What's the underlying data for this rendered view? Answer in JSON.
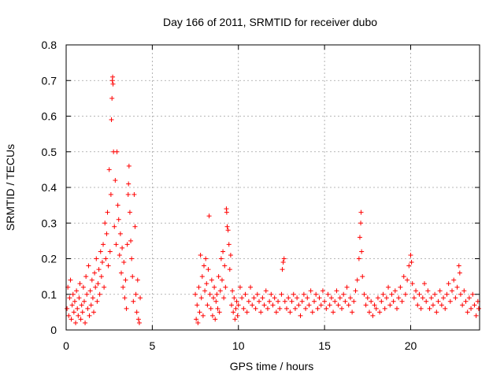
{
  "chart_data": {
    "type": "scatter",
    "title": "Day 166 of 2011, SRMTID for receiver dubo",
    "xlabel": "GPS time / hours",
    "ylabel": "SRMTID / TECUs",
    "xlim": [
      0,
      24
    ],
    "ylim": [
      0,
      0.8
    ],
    "x_ticks": [
      0,
      5,
      10,
      15,
      20
    ],
    "x_tick_labels": [
      "0",
      "5",
      "10",
      "15",
      "20"
    ],
    "y_ticks": [
      0,
      0.1,
      0.2,
      0.3,
      0.4,
      0.5,
      0.6,
      0.7,
      0.8
    ],
    "y_tick_labels": [
      "0",
      "0.1",
      "0.2",
      "0.3",
      "0.4",
      "0.5",
      "0.6",
      "0.7",
      "0.8"
    ],
    "grid": true,
    "marker": "+",
    "color": "#ff0000",
    "legend": "none",
    "series": [
      {
        "name": "SRMTID",
        "points": [
          [
            0.05,
            0.06
          ],
          [
            0.1,
            0.12
          ],
          [
            0.15,
            0.04
          ],
          [
            0.2,
            0.09
          ],
          [
            0.25,
            0.14
          ],
          [
            0.3,
            0.03
          ],
          [
            0.35,
            0.07
          ],
          [
            0.4,
            0.1
          ],
          [
            0.45,
            0.05
          ],
          [
            0.5,
            0.08
          ],
          [
            0.55,
            0.02
          ],
          [
            0.6,
            0.11
          ],
          [
            0.65,
            0.06
          ],
          [
            0.7,
            0.04
          ],
          [
            0.75,
            0.09
          ],
          [
            0.8,
            0.13
          ],
          [
            0.85,
            0.03
          ],
          [
            0.9,
            0.07
          ],
          [
            0.95,
            0.05
          ],
          [
            1.0,
            0.12
          ],
          [
            1.05,
            0.08
          ],
          [
            1.1,
            0.02
          ],
          [
            1.15,
            0.15
          ],
          [
            1.2,
            0.1
          ],
          [
            1.25,
            0.06
          ],
          [
            1.3,
            0.18
          ],
          [
            1.35,
            0.04
          ],
          [
            1.4,
            0.11
          ],
          [
            1.45,
            0.07
          ],
          [
            1.5,
            0.14
          ],
          [
            1.55,
            0.09
          ],
          [
            1.6,
            0.05
          ],
          [
            1.65,
            0.16
          ],
          [
            1.7,
            0.12
          ],
          [
            1.75,
            0.2
          ],
          [
            1.8,
            0.08
          ],
          [
            1.85,
            0.13
          ],
          [
            1.9,
            0.17
          ],
          [
            1.95,
            0.1
          ],
          [
            2.0,
            0.22
          ],
          [
            2.05,
            0.15
          ],
          [
            2.1,
            0.19
          ],
          [
            2.15,
            0.24
          ],
          [
            2.2,
            0.12
          ],
          [
            2.25,
            0.3
          ],
          [
            2.3,
            0.2
          ],
          [
            2.35,
            0.27
          ],
          [
            2.4,
            0.33
          ],
          [
            2.45,
            0.18
          ],
          [
            2.5,
            0.45
          ],
          [
            2.55,
            0.22
          ],
          [
            2.6,
            0.38
          ],
          [
            2.63,
            0.59
          ],
          [
            2.66,
            0.65
          ],
          [
            2.68,
            0.7
          ],
          [
            2.7,
            0.71
          ],
          [
            2.72,
            0.69
          ],
          [
            2.75,
            0.5
          ],
          [
            2.8,
            0.29
          ],
          [
            2.85,
            0.42
          ],
          [
            2.9,
            0.24
          ],
          [
            2.95,
            0.5
          ],
          [
            3.0,
            0.35
          ],
          [
            3.05,
            0.31
          ],
          [
            3.1,
            0.21
          ],
          [
            3.15,
            0.27
          ],
          [
            3.2,
            0.16
          ],
          [
            3.25,
            0.23
          ],
          [
            3.3,
            0.12
          ],
          [
            3.35,
            0.19
          ],
          [
            3.4,
            0.09
          ],
          [
            3.45,
            0.14
          ],
          [
            3.5,
            0.06
          ],
          [
            3.55,
            0.24
          ],
          [
            3.6,
            0.38
          ],
          [
            3.62,
            0.41
          ],
          [
            3.65,
            0.46
          ],
          [
            3.7,
            0.33
          ],
          [
            3.75,
            0.25
          ],
          [
            3.8,
            0.2
          ],
          [
            3.85,
            0.15
          ],
          [
            3.9,
            0.08
          ],
          [
            3.95,
            0.38
          ],
          [
            4.0,
            0.29
          ],
          [
            4.05,
            0.1
          ],
          [
            4.1,
            0.05
          ],
          [
            4.15,
            0.14
          ],
          [
            4.2,
            0.03
          ],
          [
            4.25,
            0.02
          ],
          [
            4.3,
            0.09
          ],
          [
            7.5,
            0.1
          ],
          [
            7.55,
            0.03
          ],
          [
            7.6,
            0.07
          ],
          [
            7.65,
            0.02
          ],
          [
            7.7,
            0.12
          ],
          [
            7.75,
            0.05
          ],
          [
            7.8,
            0.21
          ],
          [
            7.85,
            0.09
          ],
          [
            7.9,
            0.15
          ],
          [
            7.95,
            0.04
          ],
          [
            8.0,
            0.18
          ],
          [
            8.05,
            0.11
          ],
          [
            8.1,
            0.2
          ],
          [
            8.15,
            0.13
          ],
          [
            8.2,
            0.07
          ],
          [
            8.25,
            0.17
          ],
          [
            8.3,
            0.32
          ],
          [
            8.35,
            0.1
          ],
          [
            8.4,
            0.06
          ],
          [
            8.45,
            0.14
          ],
          [
            8.5,
            0.04
          ],
          [
            8.55,
            0.09
          ],
          [
            8.6,
            0.12
          ],
          [
            8.65,
            0.03
          ],
          [
            8.7,
            0.08
          ],
          [
            8.75,
            0.1
          ],
          [
            8.8,
            0.06
          ],
          [
            8.85,
            0.15
          ],
          [
            8.9,
            0.05
          ],
          [
            8.95,
            0.11
          ],
          [
            9.0,
            0.2
          ],
          [
            9.05,
            0.14
          ],
          [
            9.1,
            0.22
          ],
          [
            9.15,
            0.09
          ],
          [
            9.2,
            0.18
          ],
          [
            9.25,
            0.12
          ],
          [
            9.3,
            0.34
          ],
          [
            9.32,
            0.33
          ],
          [
            9.35,
            0.29
          ],
          [
            9.4,
            0.28
          ],
          [
            9.45,
            0.24
          ],
          [
            9.5,
            0.17
          ],
          [
            9.55,
            0.21
          ],
          [
            9.6,
            0.07
          ],
          [
            9.65,
            0.11
          ],
          [
            9.7,
            0.05
          ],
          [
            9.75,
            0.09
          ],
          [
            9.8,
            0.03
          ],
          [
            9.85,
            0.06
          ],
          [
            9.9,
            0.08
          ],
          [
            9.95,
            0.04
          ],
          [
            10.0,
            0.07
          ],
          [
            10.1,
            0.12
          ],
          [
            10.2,
            0.09
          ],
          [
            10.3,
            0.06
          ],
          [
            10.4,
            0.1
          ],
          [
            10.5,
            0.05
          ],
          [
            10.6,
            0.08
          ],
          [
            10.7,
            0.12
          ],
          [
            10.8,
            0.07
          ],
          [
            10.9,
            0.09
          ],
          [
            11.0,
            0.06
          ],
          [
            11.1,
            0.1
          ],
          [
            11.2,
            0.08
          ],
          [
            11.3,
            0.05
          ],
          [
            11.4,
            0.09
          ],
          [
            11.5,
            0.07
          ],
          [
            11.6,
            0.11
          ],
          [
            11.7,
            0.06
          ],
          [
            11.8,
            0.08
          ],
          [
            11.9,
            0.1
          ],
          [
            12.0,
            0.07
          ],
          [
            12.1,
            0.09
          ],
          [
            12.2,
            0.05
          ],
          [
            12.3,
            0.08
          ],
          [
            12.4,
            0.06
          ],
          [
            12.5,
            0.1
          ],
          [
            12.55,
            0.17
          ],
          [
            12.6,
            0.19
          ],
          [
            12.65,
            0.2
          ],
          [
            12.7,
            0.08
          ],
          [
            12.8,
            0.06
          ],
          [
            12.9,
            0.09
          ],
          [
            13.0,
            0.05
          ],
          [
            13.1,
            0.08
          ],
          [
            13.2,
            0.1
          ],
          [
            13.3,
            0.06
          ],
          [
            13.4,
            0.09
          ],
          [
            13.5,
            0.07
          ],
          [
            13.6,
            0.04
          ],
          [
            13.7,
            0.08
          ],
          [
            13.8,
            0.1
          ],
          [
            13.9,
            0.06
          ],
          [
            14.0,
            0.09
          ],
          [
            14.1,
            0.07
          ],
          [
            14.2,
            0.11
          ],
          [
            14.3,
            0.05
          ],
          [
            14.4,
            0.08
          ],
          [
            14.5,
            0.1
          ],
          [
            14.6,
            0.06
          ],
          [
            14.7,
            0.09
          ],
          [
            14.8,
            0.07
          ],
          [
            14.9,
            0.11
          ],
          [
            15.0,
            0.08
          ],
          [
            15.1,
            0.06
          ],
          [
            15.2,
            0.1
          ],
          [
            15.3,
            0.07
          ],
          [
            15.4,
            0.09
          ],
          [
            15.5,
            0.05
          ],
          [
            15.6,
            0.08
          ],
          [
            15.7,
            0.11
          ],
          [
            15.8,
            0.07
          ],
          [
            15.9,
            0.09
          ],
          [
            16.0,
            0.06
          ],
          [
            16.1,
            0.1
          ],
          [
            16.2,
            0.08
          ],
          [
            16.3,
            0.12
          ],
          [
            16.4,
            0.07
          ],
          [
            16.5,
            0.09
          ],
          [
            16.6,
            0.05
          ],
          [
            16.7,
            0.08
          ],
          [
            16.8,
            0.11
          ],
          [
            16.9,
            0.14
          ],
          [
            17.0,
            0.2
          ],
          [
            17.05,
            0.26
          ],
          [
            17.1,
            0.3
          ],
          [
            17.12,
            0.33
          ],
          [
            17.15,
            0.22
          ],
          [
            17.2,
            0.15
          ],
          [
            17.3,
            0.1
          ],
          [
            17.4,
            0.07
          ],
          [
            17.5,
            0.09
          ],
          [
            17.6,
            0.05
          ],
          [
            17.7,
            0.08
          ],
          [
            17.8,
            0.04
          ],
          [
            17.9,
            0.07
          ],
          [
            18.0,
            0.06
          ],
          [
            18.1,
            0.09
          ],
          [
            18.2,
            0.05
          ],
          [
            18.3,
            0.08
          ],
          [
            18.4,
            0.1
          ],
          [
            18.5,
            0.06
          ],
          [
            18.6,
            0.09
          ],
          [
            18.7,
            0.12
          ],
          [
            18.8,
            0.07
          ],
          [
            18.9,
            0.1
          ],
          [
            19.0,
            0.08
          ],
          [
            19.1,
            0.11
          ],
          [
            19.2,
            0.06
          ],
          [
            19.3,
            0.09
          ],
          [
            19.4,
            0.12
          ],
          [
            19.5,
            0.08
          ],
          [
            19.6,
            0.15
          ],
          [
            19.7,
            0.1
          ],
          [
            19.8,
            0.14
          ],
          [
            19.9,
            0.18
          ],
          [
            20.0,
            0.21
          ],
          [
            20.05,
            0.19
          ],
          [
            20.1,
            0.13
          ],
          [
            20.2,
            0.09
          ],
          [
            20.3,
            0.11
          ],
          [
            20.4,
            0.07
          ],
          [
            20.5,
            0.1
          ],
          [
            20.6,
            0.06
          ],
          [
            20.7,
            0.09
          ],
          [
            20.8,
            0.13
          ],
          [
            20.9,
            0.08
          ],
          [
            21.0,
            0.11
          ],
          [
            21.1,
            0.06
          ],
          [
            21.2,
            0.09
          ],
          [
            21.3,
            0.07
          ],
          [
            21.4,
            0.1
          ],
          [
            21.5,
            0.05
          ],
          [
            21.6,
            0.08
          ],
          [
            21.7,
            0.11
          ],
          [
            21.8,
            0.07
          ],
          [
            21.9,
            0.09
          ],
          [
            22.0,
            0.06
          ],
          [
            22.1,
            0.1
          ],
          [
            22.2,
            0.13
          ],
          [
            22.3,
            0.08
          ],
          [
            22.4,
            0.11
          ],
          [
            22.5,
            0.14
          ],
          [
            22.6,
            0.09
          ],
          [
            22.7,
            0.12
          ],
          [
            22.8,
            0.18
          ],
          [
            22.85,
            0.16
          ],
          [
            22.9,
            0.1
          ],
          [
            23.0,
            0.07
          ],
          [
            23.1,
            0.11
          ],
          [
            23.2,
            0.08
          ],
          [
            23.3,
            0.05
          ],
          [
            23.4,
            0.09
          ],
          [
            23.5,
            0.06
          ],
          [
            23.6,
            0.1
          ],
          [
            23.7,
            0.07
          ],
          [
            23.8,
            0.04
          ],
          [
            23.9,
            0.08
          ],
          [
            23.95,
            0.06
          ]
        ]
      }
    ]
  }
}
